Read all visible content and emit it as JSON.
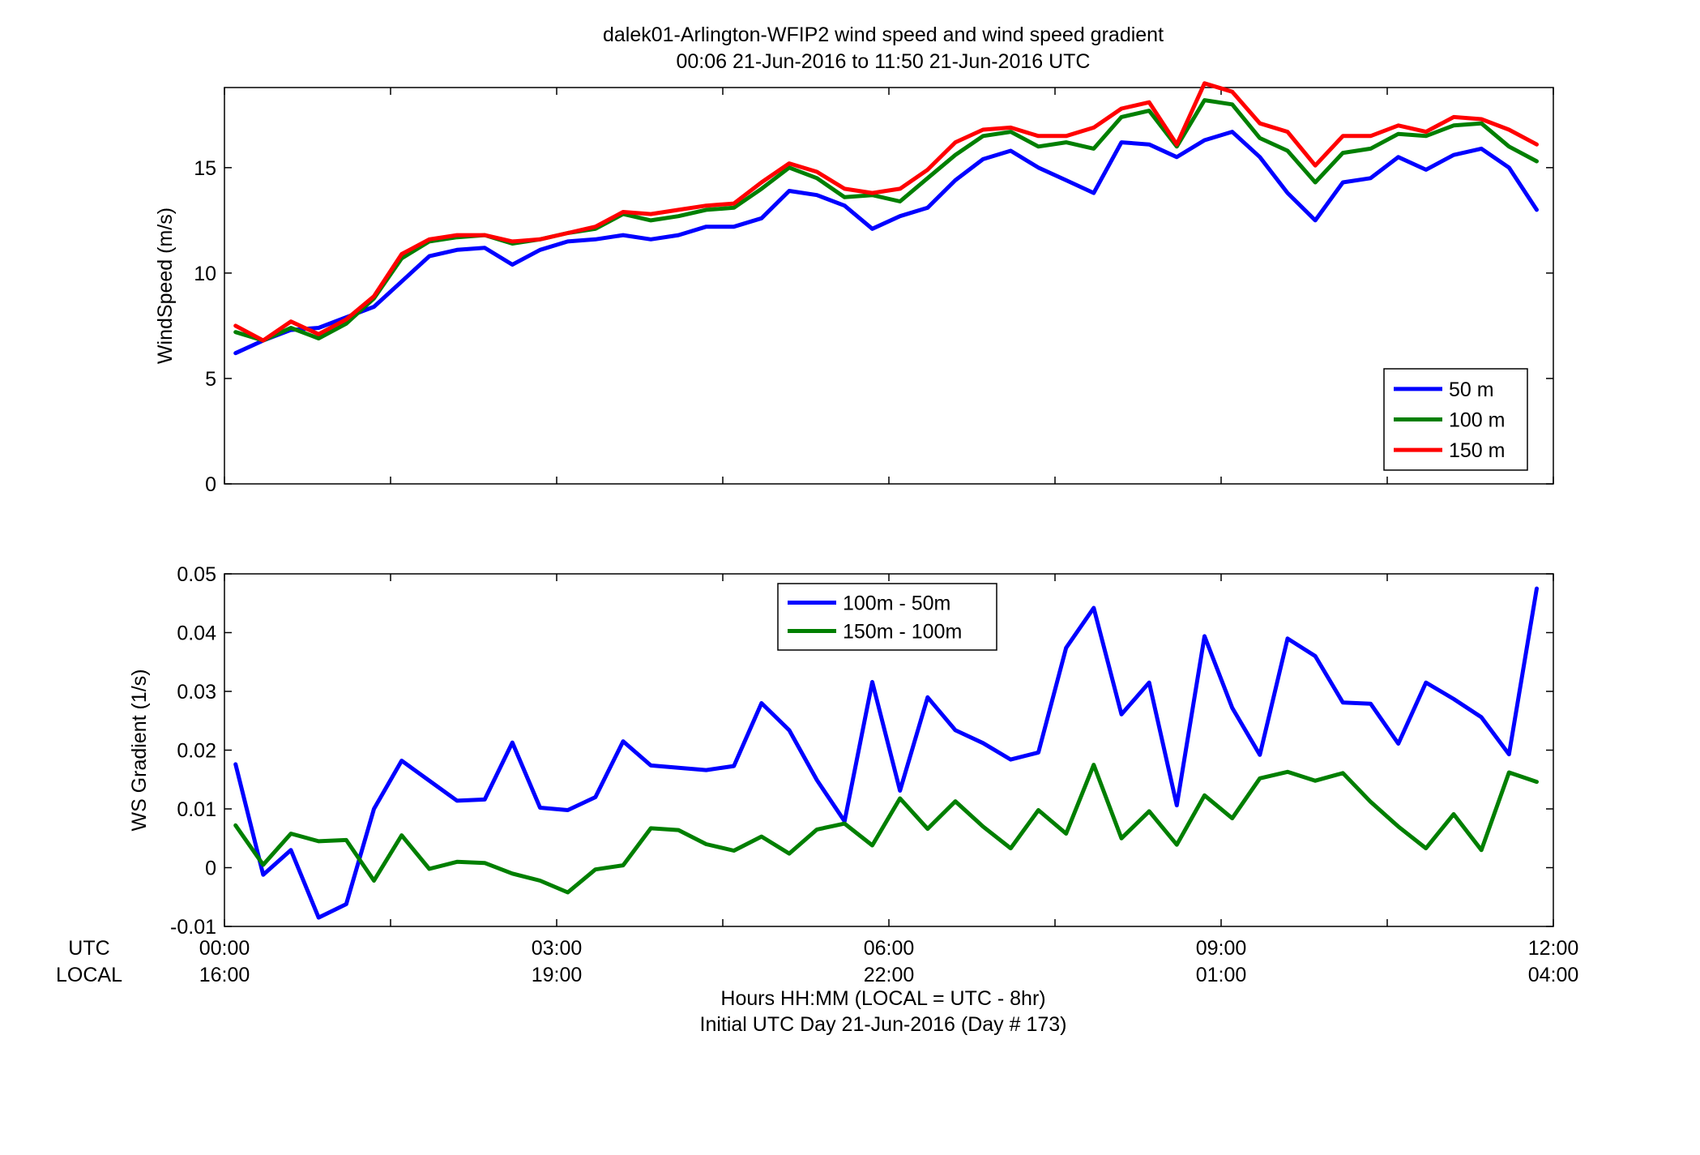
{
  "figure": {
    "title_line1": "dalek01-Arlington-WFIP2  wind speed and wind speed gradient",
    "title_line2": "00:06 21-Jun-2016 to 11:50 21-Jun-2016  UTC",
    "xlabel_line1": "Hours HH:MM  (LOCAL = UTC - 8hr)",
    "xlabel_line2": "Initial UTC Day 21-Jun-2016 (Day # 173)",
    "row_label_utc": "UTC",
    "row_label_local": "LOCAL"
  },
  "chart_data": [
    {
      "type": "line",
      "ylabel": "WindSpeed (m/s)",
      "ylim": [
        0,
        18.8
      ],
      "yticks": [
        0,
        5,
        10,
        15
      ],
      "xlim": [
        0,
        12
      ],
      "legend_position": "bottom-right",
      "grid": false,
      "x_start_hours": 0.1,
      "x_step_hours": 0.25,
      "series": [
        {
          "name": "50 m",
          "color": "#0000ff",
          "values": [
            6.2,
            6.8,
            7.3,
            7.4,
            7.9,
            8.4,
            9.6,
            10.8,
            11.1,
            11.2,
            10.4,
            11.1,
            11.5,
            11.6,
            11.8,
            11.6,
            11.8,
            12.2,
            12.2,
            12.6,
            13.9,
            13.7,
            13.2,
            12.1,
            12.7,
            13.1,
            14.4,
            15.4,
            15.8,
            15.0,
            14.4,
            13.8,
            16.2,
            16.1,
            15.5,
            16.3,
            16.7,
            15.5,
            13.8,
            12.5,
            14.3,
            14.5,
            15.5,
            14.9,
            15.6,
            15.9,
            15.0,
            13.0
          ]
        },
        {
          "name": "100 m",
          "color": "#007f00",
          "values": [
            7.2,
            6.8,
            7.4,
            6.9,
            7.6,
            8.8,
            10.7,
            11.5,
            11.7,
            11.8,
            11.4,
            11.6,
            11.9,
            12.1,
            12.8,
            12.5,
            12.7,
            13.0,
            13.1,
            14.0,
            15.0,
            14.5,
            13.6,
            13.7,
            13.4,
            14.5,
            15.6,
            16.5,
            16.7,
            16.0,
            16.2,
            15.9,
            17.4,
            17.7,
            16.0,
            18.2,
            18.0,
            16.4,
            15.8,
            14.3,
            15.7,
            15.9,
            16.6,
            16.5,
            17.0,
            17.1,
            16.0,
            15.3
          ]
        },
        {
          "name": "150 m",
          "color": "#ff0000",
          "values": [
            7.5,
            6.8,
            7.7,
            7.1,
            7.8,
            8.9,
            10.9,
            11.6,
            11.8,
            11.8,
            11.5,
            11.6,
            11.9,
            12.2,
            12.9,
            12.8,
            13.0,
            13.2,
            13.3,
            14.3,
            15.2,
            14.8,
            14.0,
            13.8,
            14.0,
            14.9,
            16.2,
            16.8,
            16.9,
            16.5,
            16.5,
            16.9,
            17.8,
            18.1,
            16.1,
            19.0,
            18.6,
            17.1,
            16.7,
            15.1,
            16.5,
            16.5,
            17.0,
            16.7,
            17.4,
            17.3,
            16.8,
            16.1
          ]
        }
      ]
    },
    {
      "type": "line",
      "ylabel": "WS Gradient (1/s)",
      "ylim": [
        -0.01,
        0.05
      ],
      "yticks": [
        -0.01,
        0,
        0.01,
        0.02,
        0.03,
        0.04,
        0.05
      ],
      "ytick_labels": [
        "-0.01",
        "0",
        "0.01",
        "0.02",
        "0.03",
        "0.04",
        "0.05"
      ],
      "xlim": [
        0,
        12
      ],
      "xticks": [
        0,
        3,
        6,
        9,
        12
      ],
      "xtick_labels_utc": [
        "00:00",
        "03:00",
        "06:00",
        "09:00",
        "12:00"
      ],
      "xtick_labels_local": [
        "16:00",
        "19:00",
        "22:00",
        "01:00",
        "04:00"
      ],
      "legend_position": "top-center",
      "grid": false,
      "x_start_hours": 0.1,
      "x_step_hours": 0.25,
      "series": [
        {
          "name": "100m - 50m",
          "color": "#0000ff",
          "values": [
            0.0176,
            -0.0012,
            0.003,
            -0.0085,
            -0.0062,
            0.01,
            0.0182,
            0.0148,
            0.0114,
            0.0116,
            0.0213,
            0.0102,
            0.0098,
            0.012,
            0.0215,
            0.0174,
            0.017,
            0.0166,
            0.0173,
            0.028,
            0.0234,
            0.0149,
            0.0079,
            0.0316,
            0.0131,
            0.029,
            0.0234,
            0.0212,
            0.0184,
            0.0196,
            0.0374,
            0.0442,
            0.0261,
            0.0315,
            0.0106,
            0.0394,
            0.0272,
            0.0192,
            0.039,
            0.036,
            0.0281,
            0.0279,
            0.0211,
            0.0315,
            0.0287,
            0.0256,
            0.0193,
            0.0475
          ]
        },
        {
          "name": "150m - 100m",
          "color": "#007f00",
          "values": [
            0.0072,
            0.0005,
            0.0058,
            0.0045,
            0.0047,
            -0.0022,
            0.0055,
            -0.0002,
            0.001,
            0.0008,
            -0.001,
            -0.0022,
            -0.0042,
            -0.0003,
            0.0004,
            0.0067,
            0.0064,
            0.004,
            0.0029,
            0.0053,
            0.0024,
            0.0065,
            0.0075,
            0.0038,
            0.0118,
            0.0066,
            0.0113,
            0.007,
            0.0033,
            0.0098,
            0.0058,
            0.0175,
            0.005,
            0.0096,
            0.0039,
            0.0123,
            0.0084,
            0.0152,
            0.0163,
            0.0148,
            0.0161,
            0.0112,
            0.007,
            0.0033,
            0.0091,
            0.003,
            0.0162,
            0.0146
          ]
        }
      ]
    }
  ]
}
